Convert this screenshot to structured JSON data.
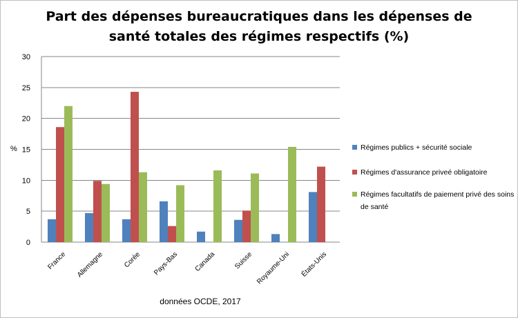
{
  "chart_data": {
    "type": "bar",
    "title": "Part des dépenses bureaucratiques dans les dépenses de santé totales des régimes respectifs (%)",
    "title_lines": [
      "Part des dépenses bureaucratiques dans les dépenses de",
      "santé totales des régimes respectifs (%)"
    ],
    "xlabel": "données OCDE, 2017",
    "ylabel": "%",
    "ylim": [
      0,
      30
    ],
    "yticks": [
      0,
      5,
      10,
      15,
      20,
      25,
      30
    ],
    "grid": true,
    "legend_position": "right",
    "categories": [
      "France",
      "Allemagne",
      "Corée",
      "Pays-Bas",
      "Canada",
      "Suisse",
      "Royaume-Uni",
      "États-Unis"
    ],
    "series": [
      {
        "name": "Régimes publics + sécurité sociale",
        "color": "#4f81bd",
        "values": [
          3.7,
          4.7,
          3.7,
          6.6,
          1.7,
          3.6,
          1.3,
          8.1
        ]
      },
      {
        "name": "Régimes d'assurance priveé obligatoire",
        "color": "#c0504d",
        "values": [
          18.6,
          9.9,
          24.3,
          2.6,
          null,
          5.1,
          null,
          12.2
        ]
      },
      {
        "name": "Régimes facultatifs de paiement privé des soins de santé",
        "color": "#9bbb59",
        "values": [
          22.0,
          9.4,
          11.3,
          9.2,
          11.6,
          11.1,
          15.4,
          null
        ]
      }
    ]
  }
}
